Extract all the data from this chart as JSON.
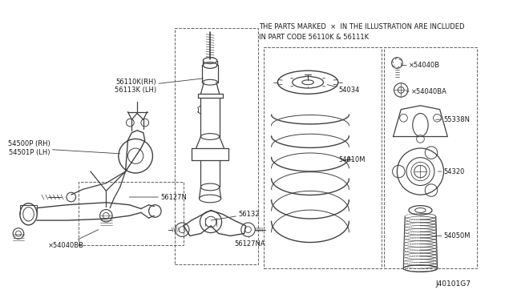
{
  "bg_color": "#ffffff",
  "line_color": "#404040",
  "dashed_color": "#606060",
  "text_color": "#1a1a1a",
  "title_line1": "THE PARTS MARKED  ×  IN THE ILLUSTRATION ARE INCLUDED",
  "title_line2": "IN PART CODE 56110K & 56111K",
  "diagram_id": "J40101G7",
  "figsize": [
    6.4,
    3.72
  ],
  "dpi": 100
}
